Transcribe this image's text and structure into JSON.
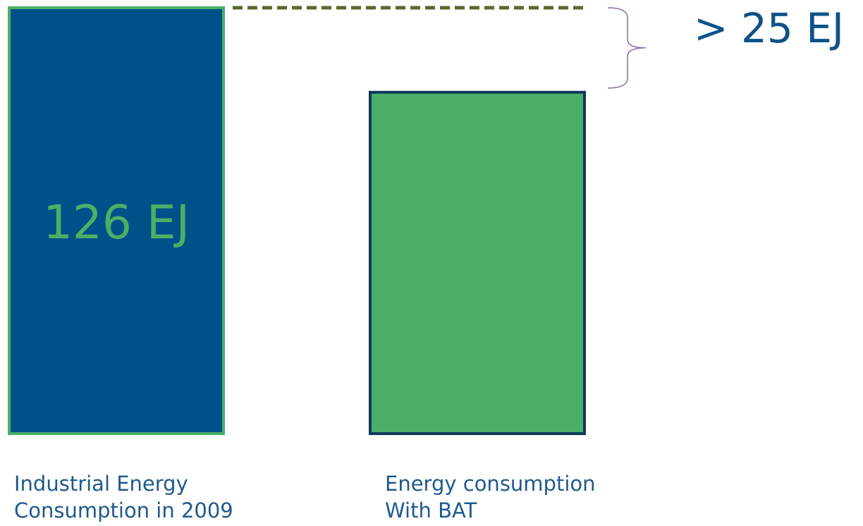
{
  "chart_data": {
    "type": "bar",
    "categories": [
      {
        "line1": "Industrial Energy",
        "line2": "Consumption in 2009"
      },
      {
        "line1": "Energy consumption",
        "line2": "With BAT"
      }
    ],
    "values": [
      126,
      101
    ],
    "data_labels": [
      "126 EJ",
      ""
    ],
    "difference_label": "> 25 EJ",
    "ylim": [
      0,
      126
    ],
    "grid": false,
    "legend": "none",
    "colors": {
      "bar_1_fill": "#00508a",
      "bar_1_stroke": "#4caf66",
      "bar_2_fill": "#4caf66",
      "bar_2_stroke": "#0e3a5c",
      "data_label": "#4caf66",
      "difference_label": "#0f5287",
      "reference_line": "#5a6a2a",
      "brace": "#8e6aa8",
      "category_text": "#1f5a8c"
    }
  }
}
